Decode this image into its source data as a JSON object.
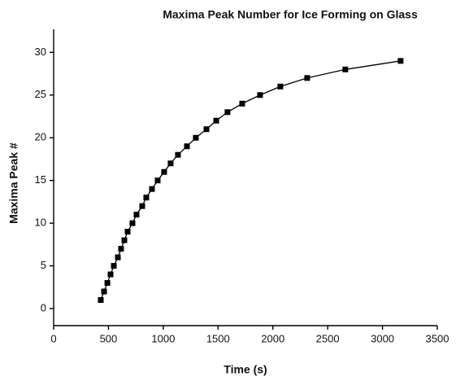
{
  "chart_data": {
    "type": "line",
    "title": "Maxima Peak Number for Ice Forming on Glass",
    "x_label": "Time (s)",
    "y_label": "Maxima Peak #",
    "x": [
      430,
      460,
      490,
      519,
      549,
      586,
      615,
      645,
      675,
      719,
      756,
      808,
      845,
      897,
      949,
      1008,
      1067,
      1134,
      1216,
      1297,
      1394,
      1483,
      1586,
      1720,
      1883,
      2068,
      2313,
      2661,
      3165
    ],
    "series": [
      {
        "color": "#000000",
        "values": [
          1,
          2,
          3,
          4,
          5,
          6,
          7,
          8,
          9,
          10,
          11,
          12,
          13,
          14,
          15,
          16,
          17,
          18,
          19,
          20,
          21,
          22,
          23,
          24,
          25,
          26,
          27,
          28,
          29
        ]
      }
    ],
    "xlim": [
      0,
      3500
    ],
    "xticks": [
      0,
      500,
      1000,
      1500,
      2000,
      2500,
      3000,
      3500
    ],
    "ylim": [
      -2,
      32.7
    ],
    "yticks": [
      0,
      5,
      10,
      15,
      20,
      25,
      30
    ],
    "grid": false
  }
}
